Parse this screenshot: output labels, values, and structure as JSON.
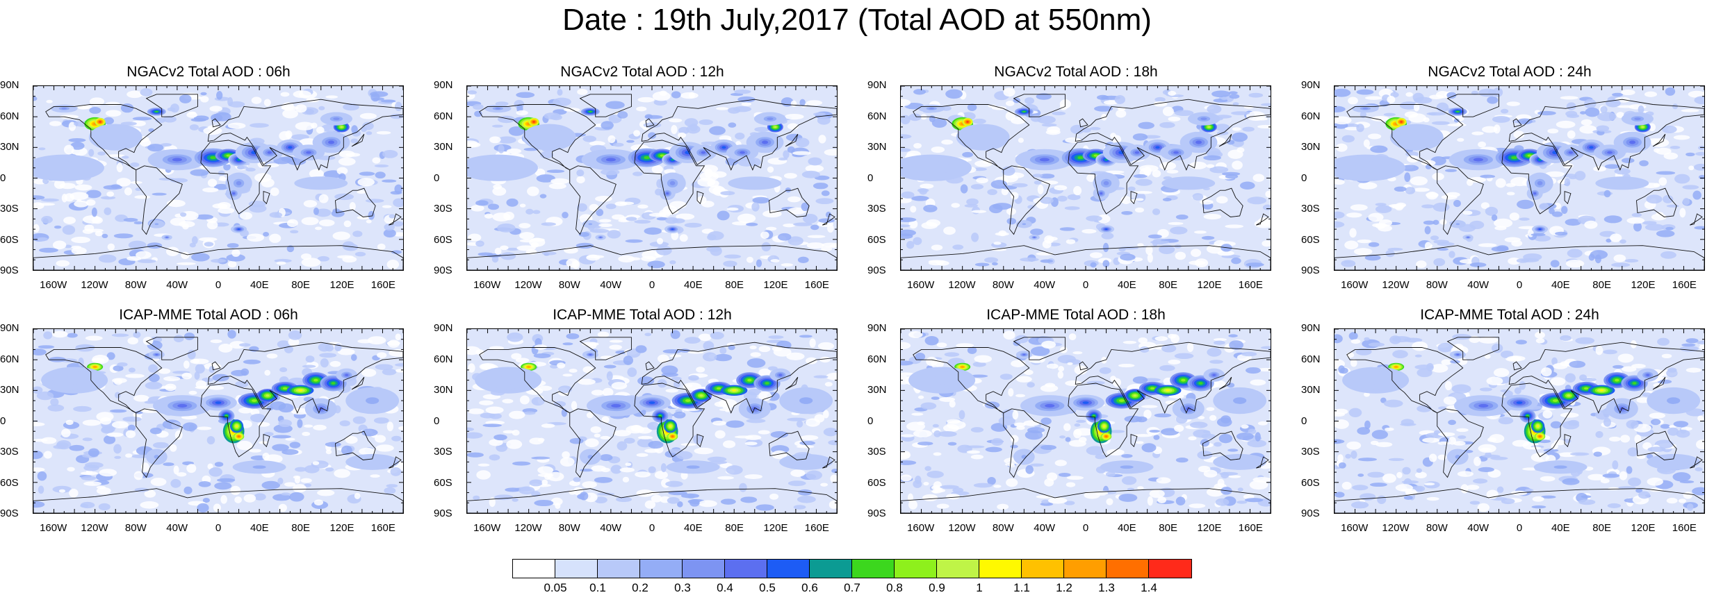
{
  "title": "Date : 19th July,2017 (Total AOD at 550nm)",
  "panels": [
    {
      "title": "NGACv2 Total AOD : 06h",
      "model": "ngac"
    },
    {
      "title": "NGACv2 Total AOD : 12h",
      "model": "ngac"
    },
    {
      "title": "NGACv2 Total AOD : 18h",
      "model": "ngac"
    },
    {
      "title": "NGACv2 Total AOD : 24h",
      "model": "ngac"
    },
    {
      "title": "ICAP-MME Total AOD : 06h",
      "model": "icap"
    },
    {
      "title": "ICAP-MME Total AOD : 12h",
      "model": "icap"
    },
    {
      "title": "ICAP-MME Total AOD : 18h",
      "model": "icap"
    },
    {
      "title": "ICAP-MME Total AOD : 24h",
      "model": "icap"
    }
  ],
  "lat_labels": [
    "90N",
    "60N",
    "30N",
    "0",
    "30S",
    "60S",
    "90S"
  ],
  "lon_labels": [
    "160W",
    "120W",
    "80W",
    "40W",
    "0",
    "40E",
    "80E",
    "120E",
    "160E"
  ],
  "colorbar": {
    "labels": [
      "0.05",
      "0.1",
      "0.2",
      "0.3",
      "0.4",
      "0.5",
      "0.6",
      "0.7",
      "0.8",
      "0.9",
      "1",
      "1.1",
      "1.2",
      "1.3",
      "1.4"
    ],
    "colors": [
      "#ffffff",
      "#d6e2fc",
      "#b8c9f9",
      "#94adf6",
      "#7d94f2",
      "#5c6ff0",
      "#1d5cf5",
      "#0c9b93",
      "#3cd71e",
      "#8ef01c",
      "#bff447",
      "#fff900",
      "#ffc100",
      "#ff9e00",
      "#ff6f00",
      "#ff2a1a"
    ]
  }
}
